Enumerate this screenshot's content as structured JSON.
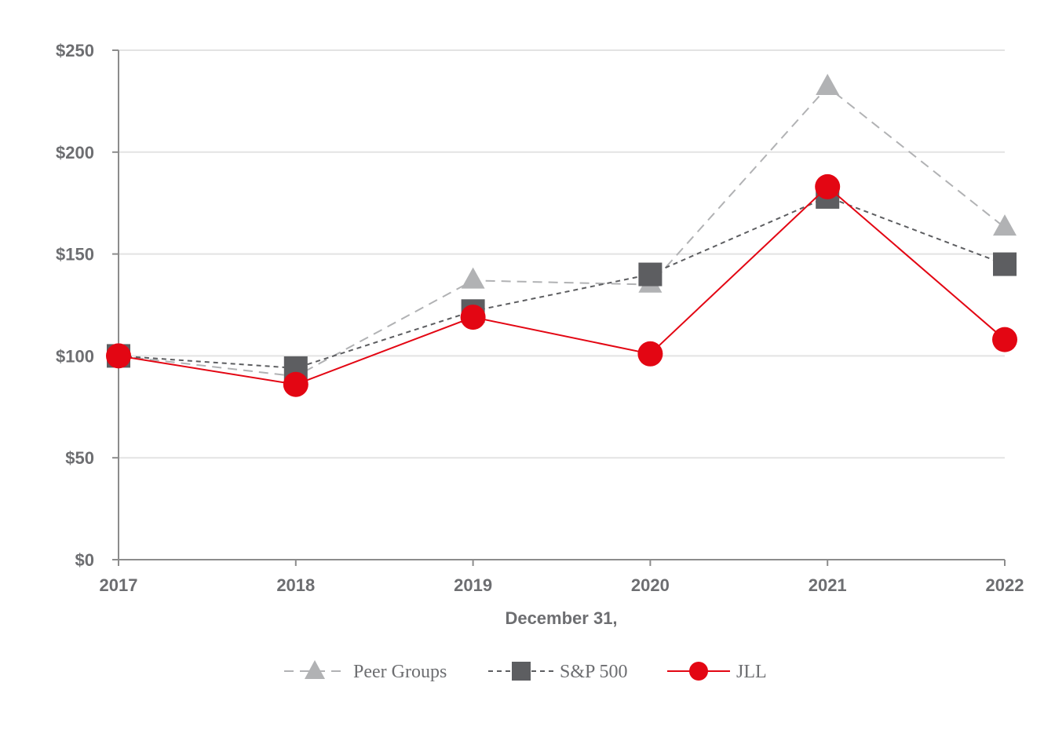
{
  "chart_data": {
    "type": "line",
    "title": "",
    "xlabel": "December 31,",
    "ylabel": "",
    "categories": [
      "2017",
      "2018",
      "2019",
      "2020",
      "2021",
      "2022"
    ],
    "ylim": [
      0,
      250
    ],
    "y_ticks": [
      0,
      50,
      100,
      150,
      200,
      250
    ],
    "y_tick_labels": [
      "$0",
      "$50",
      "$100",
      "$150",
      "$200",
      "$250"
    ],
    "grid": true,
    "legend_position": "bottom-center",
    "series": [
      {
        "name": "Peer Groups",
        "values": [
          100,
          90,
          137,
          135,
          232,
          163
        ],
        "color": "#b1b2b4",
        "line_style": "dashed",
        "marker": "triangle"
      },
      {
        "name": "S&P 500",
        "values": [
          100,
          94,
          122,
          140,
          178,
          145
        ],
        "color": "#5d5e61",
        "line_style": "dashed",
        "marker": "square"
      },
      {
        "name": "JLL",
        "values": [
          100,
          86,
          119,
          101,
          183,
          108
        ],
        "color": "#e30613",
        "line_style": "solid",
        "marker": "circle"
      }
    ]
  }
}
